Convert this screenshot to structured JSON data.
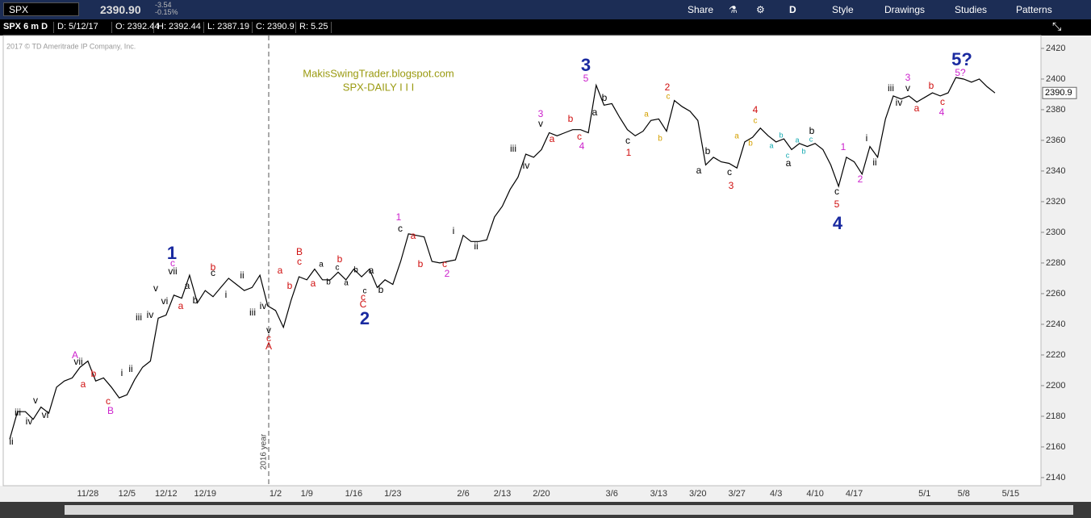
{
  "toolbar": {
    "symbol": "SPX",
    "last": "2390.90",
    "change": "-3.54",
    "change_pct": "-0.15%",
    "buttons": [
      "Share",
      "D",
      "Style",
      "Drawings",
      "Studies",
      "Patterns"
    ]
  },
  "info_bar": [
    "SPX 6 m D",
    "D: 5/12/17",
    "O: 2392.44",
    "H: 2392.44",
    "L: 2387.19",
    "C: 2390.9",
    "R: 5.25"
  ],
  "chart_data": {
    "type": "line",
    "title": "MakisSwingTrader.blogspot.com",
    "subtitle": "SPX-DAILY  I I I",
    "copyright": "2017 © TD Ameritrade IP Company, Inc.",
    "separator_label": "2016 year",
    "color": "#000000",
    "categories": [
      null,
      null,
      null,
      null,
      null,
      null,
      null,
      null,
      null,
      null,
      "11/28",
      null,
      null,
      null,
      null,
      "12/5",
      null,
      null,
      null,
      null,
      "12/12",
      null,
      null,
      null,
      null,
      "12/19",
      null,
      null,
      null,
      null,
      null,
      null,
      null,
      null,
      "1/2",
      null,
      null,
      null,
      "1/9",
      null,
      null,
      null,
      null,
      null,
      "1/16",
      null,
      null,
      null,
      null,
      "1/23",
      null,
      null,
      null,
      null,
      null,
      null,
      null,
      null,
      "2/6",
      null,
      null,
      null,
      null,
      "2/13",
      null,
      null,
      null,
      null,
      "2/20",
      null,
      null,
      null,
      null,
      null,
      null,
      null,
      null,
      "3/6",
      null,
      null,
      null,
      null,
      null,
      "3/13",
      null,
      null,
      null,
      null,
      "3/20",
      null,
      null,
      null,
      null,
      "3/27",
      null,
      null,
      null,
      null,
      "4/3",
      null,
      null,
      null,
      null,
      "4/10",
      null,
      null,
      null,
      null,
      "4/17",
      null,
      null,
      null,
      null,
      null,
      null,
      null,
      null,
      "5/1",
      null,
      null,
      null,
      null,
      "5/8",
      null,
      null,
      null,
      null,
      null,
      "5/15"
    ],
    "values": [
      2165,
      2183,
      2183,
      2178,
      2186,
      2182,
      2199,
      2203,
      2205,
      2212,
      2216,
      2203,
      2205,
      2199,
      2192,
      2194,
      2204,
      2212,
      2216,
      2244,
      2246,
      2259,
      2257,
      2272,
      2254,
      2262,
      2258,
      2264,
      2270,
      2266,
      2262,
      2264,
      2272,
      2252,
      2249,
      2238,
      2256,
      2271,
      2269,
      2276,
      2269,
      2269,
      2274,
      2269,
      2276,
      2271,
      2276,
      2264,
      2269,
      2266,
      2281,
      2299,
      2298,
      2297,
      2281,
      2280,
      2281,
      2282,
      2298,
      2294,
      2294,
      2295,
      2310,
      2317,
      2328,
      2336,
      2351,
      2349,
      2354,
      2365,
      2363,
      2365,
      2367,
      2367,
      2365,
      2396,
      2383,
      2384,
      2375,
      2367,
      2363,
      2366,
      2373,
      2374,
      2366,
      2386,
      2382,
      2379,
      2373,
      2344,
      2349,
      2346,
      2345,
      2342,
      2359,
      2362,
      2368,
      2363,
      2359,
      2361,
      2354,
      2358,
      2356,
      2358,
      2354,
      2344,
      2330,
      2349,
      2346,
      2338,
      2356,
      2349,
      2374,
      2389,
      2387,
      2389,
      2385,
      2388,
      2391,
      2389,
      2391,
      2401,
      2400,
      2398,
      2400,
      2395,
      2390.9,
      null,
      null
    ],
    "ylim": [
      2134.7,
      2428.4
    ],
    "yticks": [
      2140,
      2160,
      2180,
      2200,
      2220,
      2240,
      2260,
      2280,
      2300,
      2320,
      2340,
      2360,
      2380,
      2400,
      2420
    ],
    "annotations": [
      {
        "text": "ii",
        "color": "#000000"
      },
      {
        "text": "iii",
        "color": "#000000"
      },
      {
        "text": "iv",
        "color": "#000000"
      },
      {
        "text": "v",
        "color": "#000000"
      },
      {
        "text": "vi",
        "color": "#000000"
      },
      {
        "text": "A",
        "color": "#cc22cc"
      },
      {
        "text": "vii",
        "color": "#000000"
      },
      {
        "text": "a",
        "color": "#d01010"
      },
      {
        "text": "b",
        "color": "#d01010"
      },
      {
        "text": "c",
        "color": "#d01010"
      },
      {
        "text": "B",
        "color": "#cc22cc"
      },
      {
        "text": "i",
        "color": "#000000"
      },
      {
        "text": "ii",
        "color": "#000000"
      },
      {
        "text": "iii",
        "color": "#000000"
      },
      {
        "text": "iv",
        "color": "#000000"
      },
      {
        "text": "v",
        "color": "#000000"
      },
      {
        "text": "vi",
        "color": "#000000"
      },
      {
        "text": "1",
        "color": "#1a2aa0"
      },
      {
        "text": "c",
        "color": "#cc22cc"
      },
      {
        "text": "vii",
        "color": "#000000"
      },
      {
        "text": "a",
        "color": "#d01010"
      },
      {
        "text": "a",
        "color": "#000000"
      },
      {
        "text": "b",
        "color": "#000000"
      },
      {
        "text": "b",
        "color": "#d01010"
      },
      {
        "text": "c",
        "color": "#000000"
      },
      {
        "text": "i",
        "color": "#000000"
      },
      {
        "text": "ii",
        "color": "#000000"
      },
      {
        "text": "iii",
        "color": "#000000"
      },
      {
        "text": "iv",
        "color": "#000000"
      },
      {
        "text": "v",
        "color": "#000000"
      },
      {
        "text": "c",
        "color": "#d01010"
      },
      {
        "text": "A",
        "color": "#d01010"
      },
      {
        "text": "a",
        "color": "#d01010"
      },
      {
        "text": "b",
        "color": "#d01010"
      },
      {
        "text": "B",
        "color": "#d01010"
      },
      {
        "text": "c",
        "color": "#d01010"
      },
      {
        "text": "a",
        "color": "#d01010"
      },
      {
        "text": "a",
        "color": "#000000"
      },
      {
        "text": "b",
        "color": "#000000"
      },
      {
        "text": "c",
        "color": "#000000"
      },
      {
        "text": "b",
        "color": "#d01010"
      },
      {
        "text": "a",
        "color": "#000000"
      },
      {
        "text": "b",
        "color": "#000000"
      },
      {
        "text": "c",
        "color": "#000000"
      },
      {
        "text": "c",
        "color": "#d01010"
      },
      {
        "text": "C",
        "color": "#d01010"
      },
      {
        "text": "a",
        "color": "#000000"
      },
      {
        "text": "b",
        "color": "#000000"
      },
      {
        "text": "2",
        "color": "#1a2aa0"
      },
      {
        "text": "1",
        "color": "#cc22cc"
      },
      {
        "text": "c",
        "color": "#000000"
      },
      {
        "text": "a",
        "color": "#d01010"
      },
      {
        "text": "b",
        "color": "#d01010"
      },
      {
        "text": "c",
        "color": "#d01010"
      },
      {
        "text": "2",
        "color": "#cc22cc"
      },
      {
        "text": "i",
        "color": "#000000"
      },
      {
        "text": "ii",
        "color": "#000000"
      },
      {
        "text": "iii",
        "color": "#000000"
      },
      {
        "text": "iv",
        "color": "#000000"
      },
      {
        "text": "3",
        "color": "#cc22cc"
      },
      {
        "text": "v",
        "color": "#000000"
      },
      {
        "text": "a",
        "color": "#d01010"
      },
      {
        "text": "b",
        "color": "#d01010"
      },
      {
        "text": "c",
        "color": "#d01010"
      },
      {
        "text": "4",
        "color": "#cc22cc"
      },
      {
        "text": "3",
        "color": "#1a2aa0"
      },
      {
        "text": "5",
        "color": "#cc22cc"
      },
      {
        "text": "a",
        "color": "#000000"
      },
      {
        "text": "b",
        "color": "#000000"
      },
      {
        "text": "c",
        "color": "#000000"
      },
      {
        "text": "1",
        "color": "#d01010"
      },
      {
        "text": "a",
        "color": "#d4a000"
      },
      {
        "text": "b",
        "color": "#d4a000"
      },
      {
        "text": "2",
        "color": "#d01010"
      },
      {
        "text": "c",
        "color": "#d4a000"
      },
      {
        "text": "a",
        "color": "#000000"
      },
      {
        "text": "b",
        "color": "#000000"
      },
      {
        "text": "c",
        "color": "#000000"
      },
      {
        "text": "3",
        "color": "#d01010"
      },
      {
        "text": "a",
        "color": "#d4a000"
      },
      {
        "text": "b",
        "color": "#d4a000"
      },
      {
        "text": "4",
        "color": "#d01010"
      },
      {
        "text": "c",
        "color": "#d4a000"
      },
      {
        "text": "a",
        "color": "#10a8b0"
      },
      {
        "text": "b",
        "color": "#10a8b0"
      },
      {
        "text": "c",
        "color": "#10a8b0"
      },
      {
        "text": "a",
        "color": "#10a8b0"
      },
      {
        "text": "b",
        "color": "#10a8b0"
      },
      {
        "text": "c",
        "color": "#10a8b0"
      },
      {
        "text": "b",
        "color": "#000000"
      },
      {
        "text": "a",
        "color": "#000000"
      },
      {
        "text": "c",
        "color": "#000000"
      },
      {
        "text": "5",
        "color": "#d01010"
      },
      {
        "text": "4",
        "color": "#1a2aa0"
      },
      {
        "text": "1",
        "color": "#cc22cc"
      },
      {
        "text": "2",
        "color": "#cc22cc"
      },
      {
        "text": "i",
        "color": "#000000"
      },
      {
        "text": "ii",
        "color": "#000000"
      },
      {
        "text": "iii",
        "color": "#000000"
      },
      {
        "text": "iv",
        "color": "#000000"
      },
      {
        "text": "3",
        "color": "#cc22cc"
      },
      {
        "text": "v",
        "color": "#000000"
      },
      {
        "text": "a",
        "color": "#d01010"
      },
      {
        "text": "b",
        "color": "#d01010"
      },
      {
        "text": "c",
        "color": "#d01010"
      },
      {
        "text": "4",
        "color": "#cc22cc"
      },
      {
        "text": "5?",
        "color": "#1a2aa0"
      },
      {
        "text": "5?",
        "color": "#cc22cc"
      }
    ]
  }
}
